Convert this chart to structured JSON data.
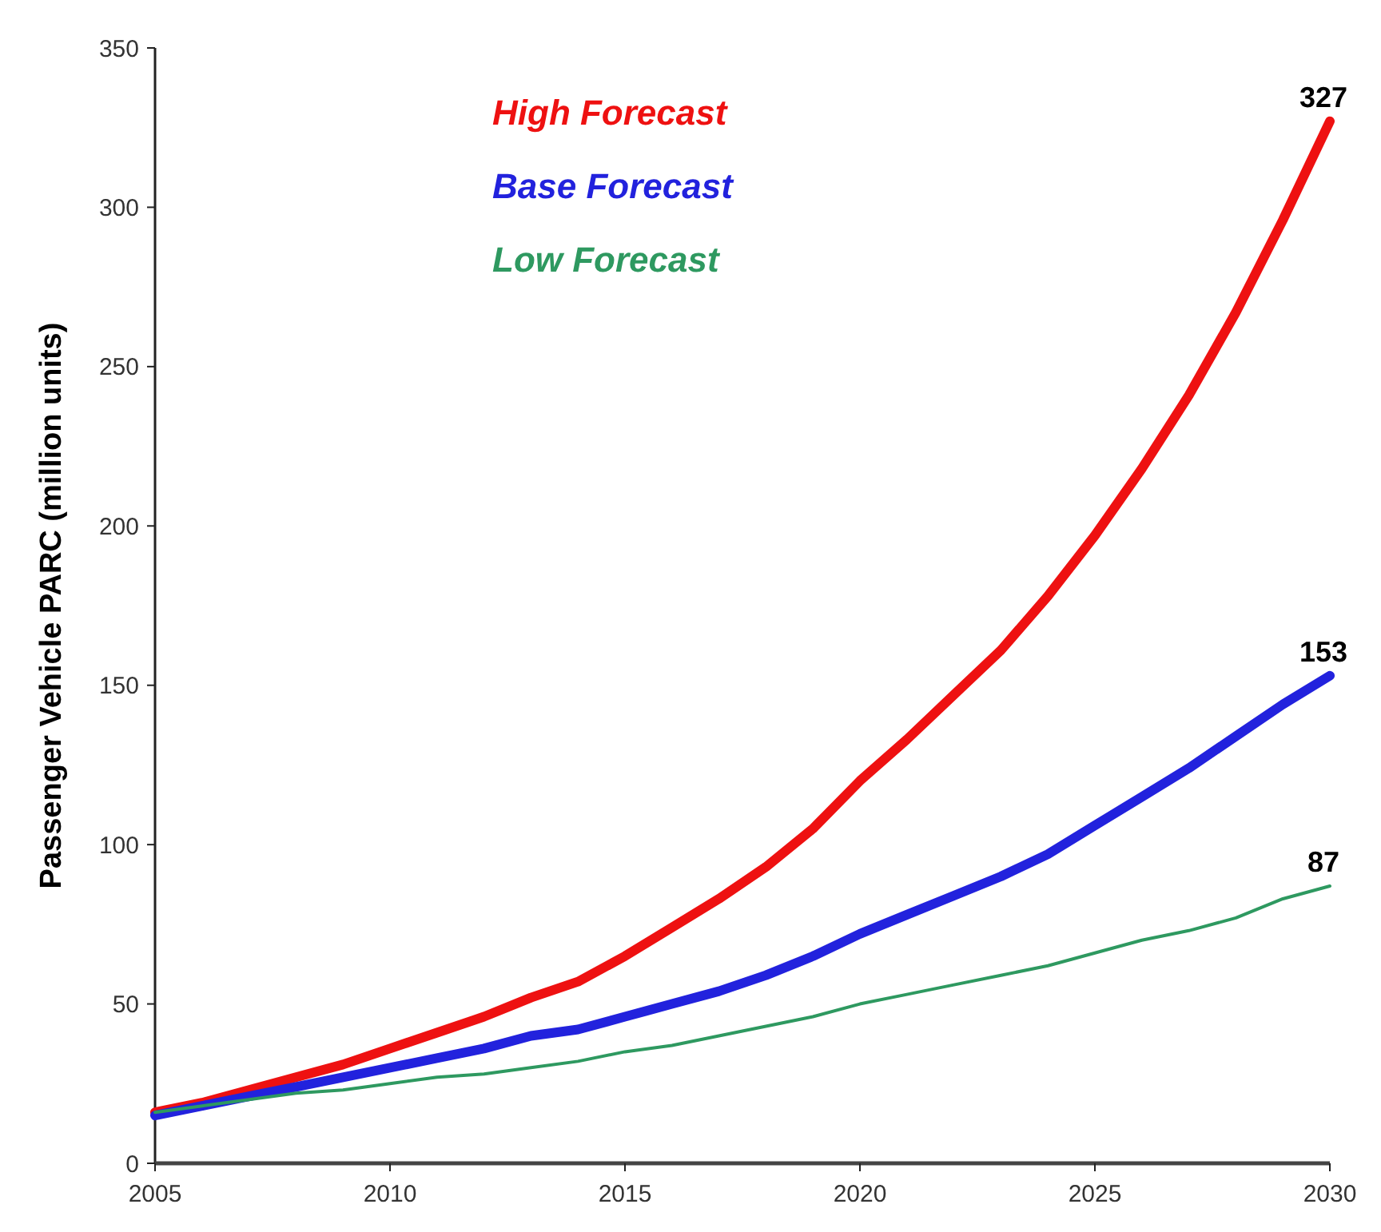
{
  "chart_data": {
    "type": "line",
    "ylabel": "Passenger Vehicle PARC (million units)",
    "x": [
      2005,
      2006,
      2007,
      2008,
      2009,
      2010,
      2011,
      2012,
      2013,
      2014,
      2015,
      2016,
      2017,
      2018,
      2019,
      2020,
      2021,
      2022,
      2023,
      2024,
      2025,
      2026,
      2027,
      2028,
      2029,
      2030
    ],
    "series": [
      {
        "name": "High Forecast",
        "color": "#ee1111",
        "values": [
          16,
          19,
          23,
          27,
          31,
          36,
          41,
          46,
          52,
          57,
          65,
          74,
          83,
          93,
          105,
          120,
          133,
          147,
          161,
          178,
          197,
          218,
          241,
          267,
          296,
          327
        ],
        "value_labels": [
          null,
          null,
          null,
          null,
          null,
          null,
          null,
          null,
          null,
          null,
          null,
          null,
          null,
          null,
          null,
          null,
          null,
          null,
          null,
          null,
          null,
          null,
          null,
          null,
          null,
          "327"
        ]
      },
      {
        "name": "Base Forecast",
        "color": "#2222dd",
        "values": [
          15,
          18,
          21,
          24,
          27,
          30,
          33,
          36,
          40,
          42,
          46,
          50,
          54,
          59,
          65,
          72,
          78,
          84,
          90,
          97,
          106,
          115,
          124,
          134,
          144,
          153
        ],
        "value_labels": [
          null,
          null,
          null,
          null,
          null,
          null,
          null,
          null,
          null,
          null,
          null,
          null,
          null,
          null,
          null,
          null,
          null,
          null,
          null,
          null,
          null,
          null,
          null,
          null,
          null,
          "153"
        ]
      },
      {
        "name": "Low Forecast",
        "color": "#2e9960",
        "values": [
          16,
          18,
          20,
          22,
          23,
          25,
          27,
          28,
          30,
          32,
          35,
          37,
          40,
          43,
          46,
          50,
          53,
          56,
          59,
          62,
          66,
          70,
          73,
          77,
          83,
          87
        ],
        "value_labels": [
          null,
          null,
          null,
          null,
          null,
          null,
          null,
          null,
          null,
          null,
          null,
          null,
          null,
          null,
          null,
          null,
          null,
          null,
          null,
          null,
          null,
          null,
          null,
          null,
          null,
          "87"
        ]
      }
    ],
    "xlim": [
      2005,
      2030
    ],
    "xticks": [
      2005,
      2010,
      2015,
      2020,
      2025,
      2030
    ],
    "ylim": [
      0,
      350
    ],
    "yticks": [
      0,
      50,
      100,
      150,
      200,
      250,
      300,
      350
    ],
    "legend": "top left",
    "grid": false,
    "marker": "none",
    "line_style": "solid"
  }
}
